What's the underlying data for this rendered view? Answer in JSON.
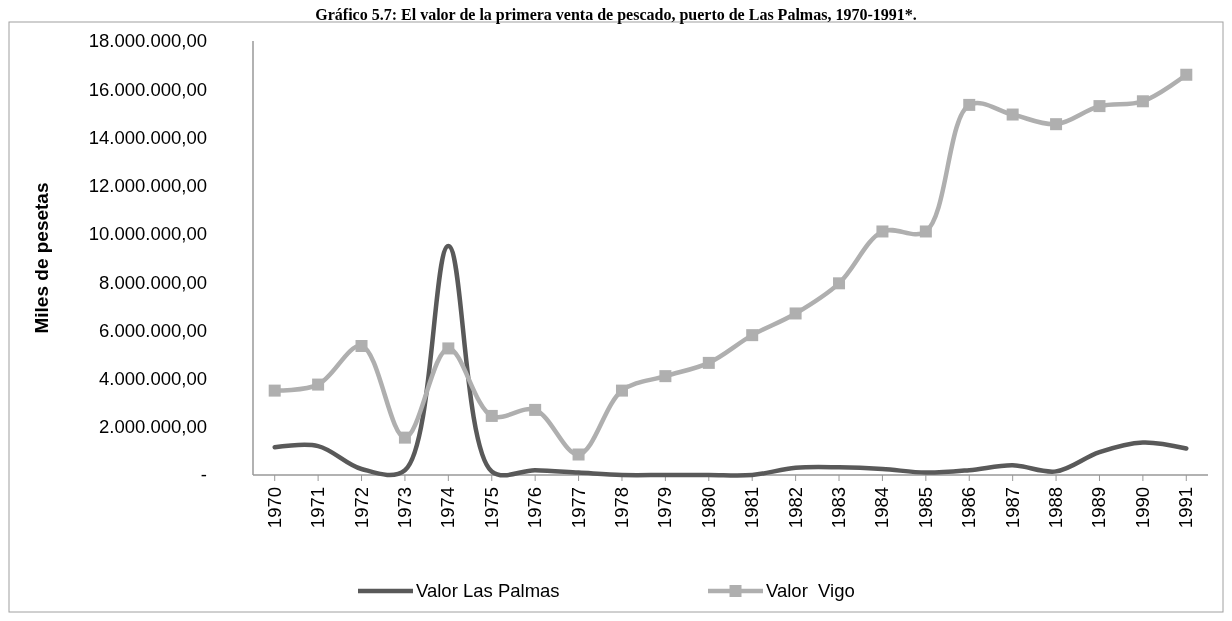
{
  "chart_data": {
    "type": "line",
    "title": "Gráfico 5.7: El valor de la primera venta de pescado, puerto de Las Palmas, 1970-1991*.",
    "ylabel": "Miles de pesetas",
    "categories": [
      "1970",
      "1971",
      "1972",
      "1973",
      "1974",
      "1975",
      "1976",
      "1977",
      "1978",
      "1979",
      "1980",
      "1981",
      "1982",
      "1983",
      "1984",
      "1985",
      "1986",
      "1987",
      "1988",
      "1989",
      "1990",
      "1991"
    ],
    "series": [
      {
        "name": "Valor Las Palmas",
        "color": "#595959",
        "marker": "none",
        "values": [
          1150000,
          1200000,
          250000,
          200000,
          9500000,
          150000,
          200000,
          100000,
          0,
          0,
          0,
          0,
          300000,
          320000,
          250000,
          100000,
          200000,
          400000,
          150000,
          950000,
          1350000,
          1100000
        ]
      },
      {
        "name": "Valor  Vigo",
        "color": "#afafaf",
        "marker": "square",
        "values": [
          3500000,
          3750000,
          5350000,
          1550000,
          5250000,
          2450000,
          2700000,
          850000,
          3500000,
          4100000,
          4650000,
          5800000,
          6700000,
          7950000,
          10100000,
          10100000,
          15350000,
          14950000,
          14550000,
          15300000,
          15500000,
          16600000
        ]
      }
    ],
    "ylim": [
      0,
      18000000
    ],
    "yticks": [
      {
        "value": 0,
        "label": "-"
      },
      {
        "value": 2000000,
        "label": "2.000.000,00"
      },
      {
        "value": 4000000,
        "label": "4.000.000,00"
      },
      {
        "value": 6000000,
        "label": "6.000.000,00"
      },
      {
        "value": 8000000,
        "label": "8.000.000,00"
      },
      {
        "value": 10000000,
        "label": "10.000.000,00"
      },
      {
        "value": 12000000,
        "label": "12.000.000,00"
      },
      {
        "value": 14000000,
        "label": "14.000.000,00"
      },
      {
        "value": 16000000,
        "label": "16.000.000,00"
      },
      {
        "value": 18000000,
        "label": "18.000.000,00"
      }
    ],
    "grid": false,
    "legend": "bottom"
  }
}
